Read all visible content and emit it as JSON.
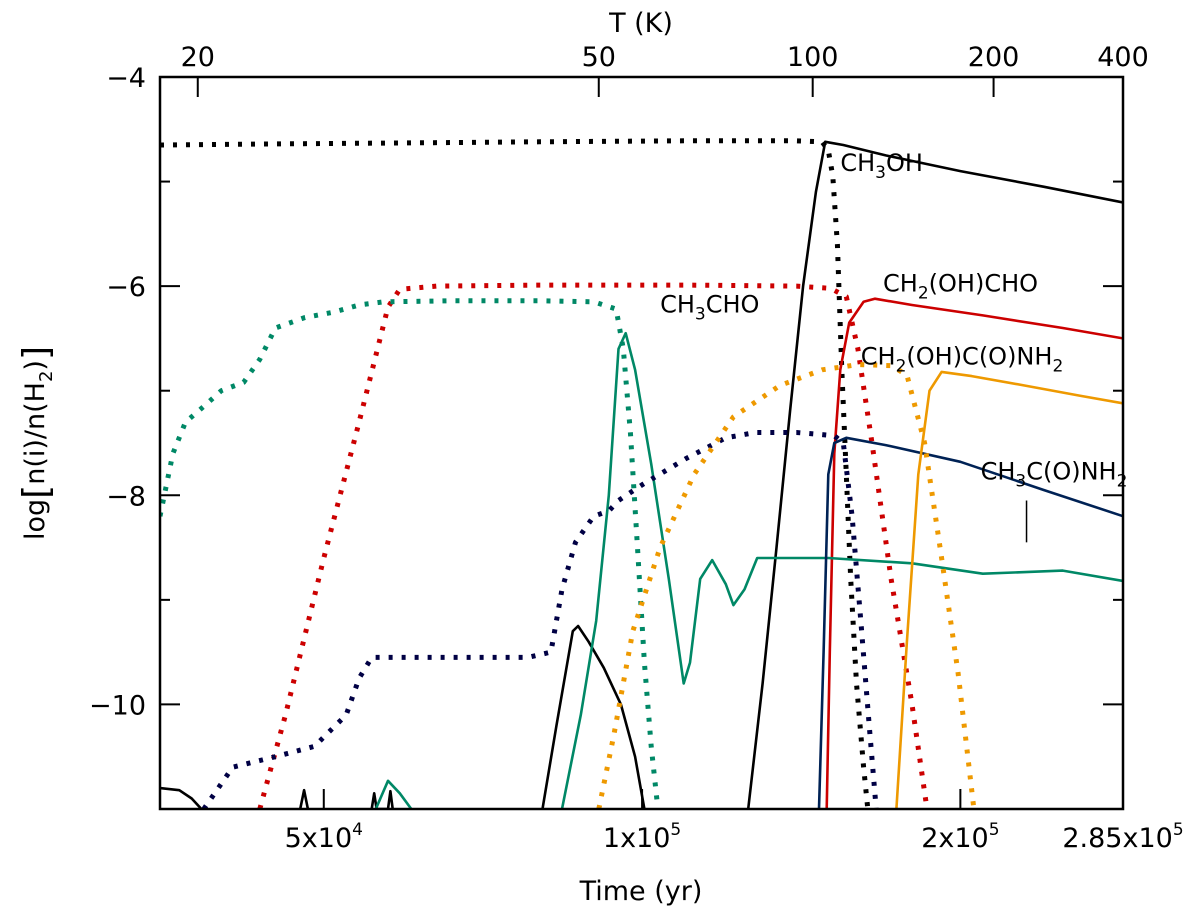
{
  "chart_data": {
    "type": "line",
    "xlabel": "Time (yr)",
    "ylabel": "log[n(i)/n(H2)]",
    "x2label": "T (K)",
    "xscale": "log",
    "xlim": [
      35000,
      285000
    ],
    "ylim": [
      -11,
      -4
    ],
    "x_ticks": [
      {
        "value": 50000,
        "label": "5x10",
        "sup": "4"
      },
      {
        "value": 100000,
        "label": "1x10",
        "sup": "5"
      },
      {
        "value": 200000,
        "label": "2x10",
        "sup": "5"
      },
      {
        "value": 285000,
        "label": "2.85x10",
        "sup": "5"
      }
    ],
    "top_ticks": [
      {
        "value": 38000,
        "label": "20"
      },
      {
        "value": 91000,
        "label": "50"
      },
      {
        "value": 145000,
        "label": "100"
      },
      {
        "value": 215000,
        "label": "200"
      },
      {
        "value": 285000,
        "label": "400"
      }
    ],
    "y_ticks": [
      {
        "value": -4,
        "label": "−4"
      },
      {
        "value": -6,
        "label": "−6"
      },
      {
        "value": -8,
        "label": "−8"
      },
      {
        "value": -10,
        "label": "−10"
      }
    ],
    "labels": [
      {
        "parts": [
          [
            "CH",
            ""
          ],
          [
            "3",
            "sub"
          ],
          [
            "OH",
            ""
          ]
        ],
        "x": 154000,
        "y": -4.9
      },
      {
        "parts": [
          [
            "CH",
            ""
          ],
          [
            "2",
            "sub"
          ],
          [
            "(OH)CHO",
            ""
          ]
        ],
        "x": 169000,
        "y": -6.05
      },
      {
        "parts": [
          [
            "CH",
            ""
          ],
          [
            "3",
            "sub"
          ],
          [
            "CHO",
            ""
          ]
        ],
        "x": 104000,
        "y": -6.25
      },
      {
        "parts": [
          [
            "CH",
            ""
          ],
          [
            "2",
            "sub"
          ],
          [
            "(OH)C(O)NH",
            ""
          ],
          [
            "2",
            "sub"
          ]
        ],
        "x": 161000,
        "y": -6.75
      },
      {
        "parts": [
          [
            "CH",
            ""
          ],
          [
            "3",
            "sub"
          ],
          [
            "C(O)NH",
            ""
          ],
          [
            "2",
            "sub"
          ]
        ],
        "x": 209000,
        "y": -7.85
      }
    ],
    "leader_line": {
      "x": 231000,
      "y_from": -8.05,
      "y_to": -8.45
    },
    "series": [
      {
        "color": "#000000",
        "style": "dotted",
        "points": [
          [
            35000,
            -4.65
          ],
          [
            45000,
            -4.64
          ],
          [
            60000,
            -4.63
          ],
          [
            80000,
            -4.62
          ],
          [
            110000,
            -4.61
          ],
          [
            140000,
            -4.61
          ],
          [
            148000,
            -4.62
          ],
          [
            150000,
            -4.7
          ],
          [
            151500,
            -4.95
          ],
          [
            153000,
            -5.6
          ],
          [
            154500,
            -6.8
          ],
          [
            156000,
            -7.8
          ],
          [
            157500,
            -8.8
          ],
          [
            159500,
            -9.8
          ],
          [
            162000,
            -10.6
          ],
          [
            163500,
            -11
          ]
        ]
      },
      {
        "color": "#000000",
        "style": "solid",
        "points": [
          [
            35000,
            -10.8
          ],
          [
            36500,
            -10.82
          ],
          [
            37500,
            -10.9
          ],
          [
            38300,
            -11
          ]
        ]
      },
      {
        "color": "#000000",
        "style": "solid",
        "points": [
          [
            47500,
            -11
          ],
          [
            47900,
            -10.82
          ],
          [
            48300,
            -11
          ]
        ]
      },
      {
        "color": "#000000",
        "style": "solid",
        "points": [
          [
            55500,
            -11
          ],
          [
            55800,
            -10.85
          ],
          [
            56100,
            -11
          ],
          [
            57500,
            -11
          ],
          [
            57800,
            -10.83
          ],
          [
            58100,
            -11
          ]
        ]
      },
      {
        "color": "#000000",
        "style": "solid",
        "points": [
          [
            80500,
            -11
          ],
          [
            83000,
            -10.2
          ],
          [
            86000,
            -9.3
          ],
          [
            87000,
            -9.25
          ],
          [
            89000,
            -9.4
          ],
          [
            92000,
            -9.65
          ],
          [
            95500,
            -10
          ],
          [
            98500,
            -10.5
          ],
          [
            100500,
            -11
          ]
        ]
      },
      {
        "color": "#000000",
        "style": "solid",
        "points": [
          [
            126000,
            -11
          ],
          [
            130000,
            -9.8
          ],
          [
            134000,
            -8.5
          ],
          [
            138000,
            -7.2
          ],
          [
            142000,
            -6
          ],
          [
            146000,
            -5.1
          ],
          [
            149000,
            -4.62
          ],
          [
            155000,
            -4.65
          ],
          [
            170000,
            -4.75
          ],
          [
            200000,
            -4.9
          ],
          [
            240000,
            -5.05
          ],
          [
            285000,
            -5.2
          ]
        ]
      },
      {
        "color": "#cc0000",
        "style": "dotted",
        "points": [
          [
            43500,
            -11
          ],
          [
            46000,
            -10.1
          ],
          [
            50000,
            -8.6
          ],
          [
            54000,
            -7.3
          ],
          [
            57500,
            -6.2
          ],
          [
            59000,
            -6.03
          ],
          [
            64000,
            -6
          ],
          [
            80000,
            -5.99
          ],
          [
            110000,
            -5.99
          ],
          [
            140000,
            -6.0
          ],
          [
            150000,
            -6.02
          ],
          [
            152000,
            -6.04
          ],
          [
            156000,
            -6.1
          ],
          [
            160000,
            -6.6
          ],
          [
            165000,
            -7.5
          ],
          [
            172000,
            -8.8
          ],
          [
            180000,
            -10
          ],
          [
            186000,
            -11
          ]
        ]
      },
      {
        "color": "#cc0000",
        "style": "solid",
        "points": [
          [
            149500,
            -11
          ],
          [
            150500,
            -9.5
          ],
          [
            152000,
            -7.6
          ],
          [
            154000,
            -6.8
          ],
          [
            157000,
            -6.35
          ],
          [
            162000,
            -6.15
          ],
          [
            166000,
            -6.12
          ],
          [
            180000,
            -6.18
          ],
          [
            210000,
            -6.28
          ],
          [
            250000,
            -6.4
          ],
          [
            285000,
            -6.5
          ]
        ]
      },
      {
        "color": "#008866",
        "style": "dotted",
        "points": [
          [
            35000,
            -8.2
          ],
          [
            36000,
            -7.6
          ],
          [
            37000,
            -7.3
          ],
          [
            38500,
            -7.15
          ],
          [
            40000,
            -7.0
          ],
          [
            42000,
            -6.92
          ],
          [
            43500,
            -6.7
          ],
          [
            45000,
            -6.4
          ],
          [
            48000,
            -6.3
          ],
          [
            51000,
            -6.25
          ],
          [
            54000,
            -6.18
          ],
          [
            57000,
            -6.15
          ],
          [
            66000,
            -6.14
          ],
          [
            80000,
            -6.14
          ],
          [
            90000,
            -6.15
          ],
          [
            94500,
            -6.22
          ],
          [
            96000,
            -6.6
          ],
          [
            97500,
            -7.4
          ],
          [
            99000,
            -8.5
          ],
          [
            100500,
            -9.6
          ],
          [
            102000,
            -10.4
          ],
          [
            103500,
            -11
          ]
        ]
      },
      {
        "color": "#008866",
        "style": "solid",
        "points": [
          [
            56000,
            -11
          ],
          [
            57500,
            -10.73
          ],
          [
            59000,
            -10.85
          ],
          [
            60500,
            -11
          ]
        ]
      },
      {
        "color": "#008866",
        "style": "solid",
        "points": [
          [
            84000,
            -11
          ],
          [
            87500,
            -10.1
          ],
          [
            90500,
            -9.2
          ],
          [
            93000,
            -8.0
          ],
          [
            95000,
            -6.6
          ],
          [
            96500,
            -6.45
          ],
          [
            98500,
            -6.8
          ],
          [
            102000,
            -7.7
          ],
          [
            106000,
            -8.8
          ],
          [
            109500,
            -9.8
          ],
          [
            111000,
            -9.6
          ],
          [
            113500,
            -8.8
          ],
          [
            116500,
            -8.62
          ],
          [
            120000,
            -8.85
          ],
          [
            122000,
            -9.05
          ],
          [
            125000,
            -8.9
          ],
          [
            128500,
            -8.6
          ],
          [
            135000,
            -8.6
          ],
          [
            150000,
            -8.6
          ],
          [
            180000,
            -8.65
          ],
          [
            210000,
            -8.75
          ],
          [
            250000,
            -8.72
          ],
          [
            285000,
            -8.82
          ]
        ]
      },
      {
        "color": "#000044",
        "style": "dotted",
        "points": [
          [
            38500,
            -11
          ],
          [
            41000,
            -10.6
          ],
          [
            45000,
            -10.5
          ],
          [
            49000,
            -10.4
          ],
          [
            52500,
            -10.1
          ],
          [
            54000,
            -9.75
          ],
          [
            55500,
            -9.55
          ],
          [
            60000,
            -9.55
          ],
          [
            70000,
            -9.55
          ],
          [
            78000,
            -9.55
          ],
          [
            82000,
            -9.5
          ],
          [
            84000,
            -8.9
          ],
          [
            86500,
            -8.45
          ],
          [
            90000,
            -8.2
          ],
          [
            93000,
            -8.15
          ],
          [
            95000,
            -8.05
          ],
          [
            100000,
            -7.9
          ],
          [
            110000,
            -7.65
          ],
          [
            120000,
            -7.45
          ],
          [
            128000,
            -7.4
          ],
          [
            140000,
            -7.4
          ],
          [
            148000,
            -7.42
          ],
          [
            152000,
            -7.43
          ],
          [
            155000,
            -7.5
          ],
          [
            158000,
            -8.2
          ],
          [
            161000,
            -9.2
          ],
          [
            164000,
            -10.2
          ],
          [
            166500,
            -11
          ]
        ]
      },
      {
        "color": "#002255",
        "style": "solid",
        "points": [
          [
            147000,
            -11
          ],
          [
            148500,
            -9.5
          ],
          [
            150000,
            -7.8
          ],
          [
            152000,
            -7.5
          ],
          [
            156000,
            -7.45
          ],
          [
            170000,
            -7.52
          ],
          [
            200000,
            -7.68
          ],
          [
            240000,
            -7.95
          ],
          [
            285000,
            -8.2
          ]
        ]
      },
      {
        "color": "#ee9900",
        "style": "dotted",
        "points": [
          [
            91000,
            -11
          ],
          [
            94000,
            -10.3
          ],
          [
            98000,
            -9.3
          ],
          [
            104000,
            -8.5
          ],
          [
            112000,
            -7.8
          ],
          [
            122000,
            -7.25
          ],
          [
            135000,
            -6.95
          ],
          [
            148000,
            -6.8
          ],
          [
            160000,
            -6.75
          ],
          [
            172000,
            -6.76
          ],
          [
            178000,
            -6.85
          ],
          [
            185000,
            -7.5
          ],
          [
            192000,
            -8.6
          ],
          [
            199000,
            -9.7
          ],
          [
            206000,
            -11
          ]
        ]
      },
      {
        "color": "#ee9900",
        "style": "solid",
        "points": [
          [
            174000,
            -11
          ],
          [
            178000,
            -9.4
          ],
          [
            182500,
            -7.8
          ],
          [
            187000,
            -7.0
          ],
          [
            192000,
            -6.82
          ],
          [
            205000,
            -6.86
          ],
          [
            230000,
            -6.95
          ],
          [
            260000,
            -7.05
          ],
          [
            285000,
            -7.12
          ]
        ]
      }
    ]
  }
}
